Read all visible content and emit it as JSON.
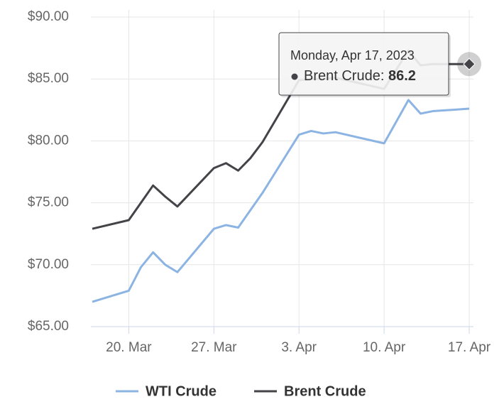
{
  "chart_data": {
    "type": "line",
    "x": [
      "2023-03-17",
      "2023-03-20",
      "2023-03-21",
      "2023-03-22",
      "2023-03-23",
      "2023-03-24",
      "2023-03-27",
      "2023-03-28",
      "2023-03-29",
      "2023-03-30",
      "2023-03-31",
      "2023-04-03",
      "2023-04-04",
      "2023-04-05",
      "2023-04-06",
      "2023-04-10",
      "2023-04-12",
      "2023-04-13",
      "2023-04-14",
      "2023-04-17"
    ],
    "series": [
      {
        "name": "WTI Crude",
        "color": "#8cb4e3",
        "values": [
          67.0,
          67.9,
          69.8,
          71.0,
          70.0,
          69.4,
          72.9,
          73.2,
          73.0,
          74.4,
          75.8,
          80.5,
          80.8,
          80.6,
          80.7,
          79.8,
          83.3,
          82.2,
          82.4,
          82.6
        ]
      },
      {
        "name": "Brent Crude",
        "color": "#434348",
        "values": [
          72.9,
          73.6,
          75.0,
          76.4,
          75.5,
          74.7,
          77.8,
          78.2,
          77.6,
          78.6,
          79.9,
          84.9,
          85.0,
          85.0,
          85.1,
          84.2,
          87.3,
          86.1,
          86.2,
          86.2
        ]
      }
    ],
    "xlim": [
      "2023-03-17",
      "2023-04-17"
    ],
    "xticks": [
      {
        "value": "2023-03-20",
        "label": "20. Mar"
      },
      {
        "value": "2023-03-27",
        "label": "27. Mar"
      },
      {
        "value": "2023-04-03",
        "label": "3. Apr"
      },
      {
        "value": "2023-04-10",
        "label": "10. Apr"
      },
      {
        "value": "2023-04-17",
        "label": "17. Apr"
      }
    ],
    "ylim": [
      65,
      90
    ],
    "yticks": [
      {
        "value": 65,
        "label": "$65.00"
      },
      {
        "value": 70,
        "label": "$70.00"
      },
      {
        "value": 75,
        "label": "$75.00"
      },
      {
        "value": 80,
        "label": "$80.00"
      },
      {
        "value": 85,
        "label": "$85.00"
      },
      {
        "value": 90,
        "label": "$90.00"
      }
    ],
    "grid": true,
    "legend": "bottom",
    "tooltip": "Monday, Apr 17, 2023"
  }
}
